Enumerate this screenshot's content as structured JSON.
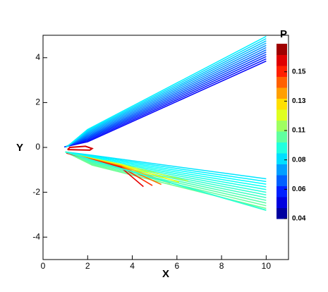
{
  "chart_data": {
    "type": "contour",
    "x_label": "X",
    "y_label": "Y",
    "xlim": [
      0,
      11
    ],
    "ylim": [
      -5,
      5
    ],
    "xticks": [
      0,
      2,
      4,
      6,
      8,
      10
    ],
    "yticks": [
      -4,
      -2,
      0,
      2,
      4
    ],
    "colorbar": {
      "title": "P",
      "clim": [
        0.04,
        0.171
      ],
      "ticks": [
        0.04,
        {
          "value": 0.062,
          "label": "0.06"
        },
        {
          "value": 0.084,
          "label": "0.08"
        },
        {
          "value": 0.106,
          "label": "0.11"
        },
        {
          "value": 0.128,
          "label": "0.13"
        },
        {
          "value": 0.15,
          "label": "0.15"
        }
      ]
    }
  }
}
